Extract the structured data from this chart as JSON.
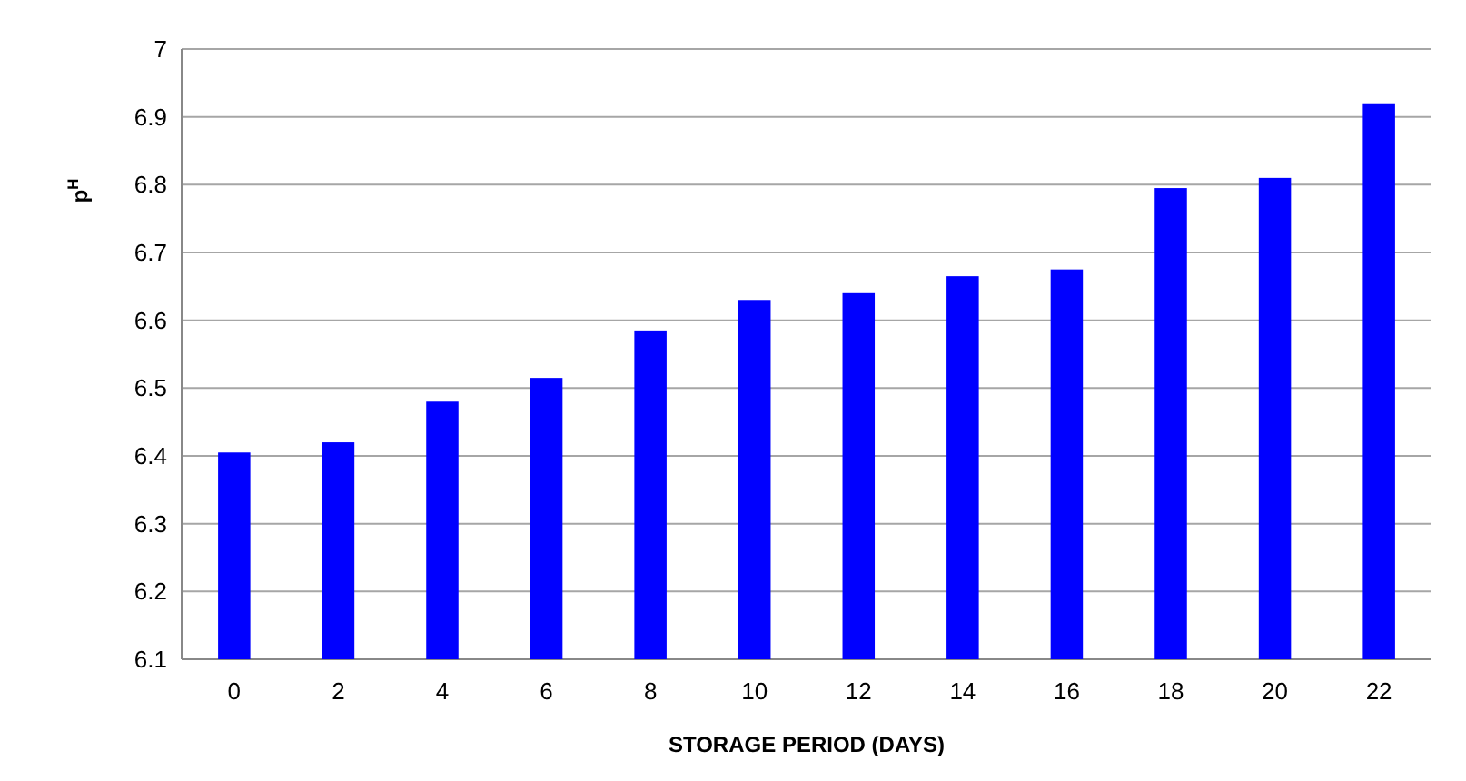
{
  "chart_data": {
    "type": "bar",
    "xlabel": "STORAGE PERIOD (DAYS)",
    "ylabel": "p$^{H}$",
    "categories": [
      "0",
      "2",
      "4",
      "6",
      "8",
      "10",
      "12",
      "14",
      "16",
      "18",
      "20",
      "22"
    ],
    "values": [
      6.405,
      6.42,
      6.48,
      6.515,
      6.585,
      6.63,
      6.64,
      6.665,
      6.675,
      6.795,
      6.81,
      6.92
    ],
    "color": "#0000ff",
    "ylim": [
      6.1,
      7
    ],
    "yticks": [
      6.1,
      6.2,
      6.3,
      6.4,
      6.5,
      6.6,
      6.7,
      6.8,
      6.9,
      7
    ],
    "grid": "y"
  }
}
